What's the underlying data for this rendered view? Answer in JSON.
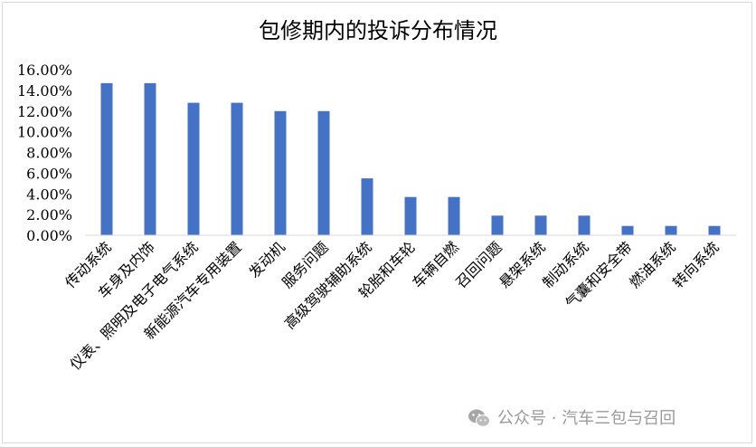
{
  "chart_data": {
    "type": "bar",
    "title": "包修期内的投诉分布情况",
    "categories": [
      "传动系统",
      "车身及内饰",
      "仪表、照明及电子电气系统",
      "新能源汽车专用装置",
      "发动机",
      "服务问题",
      "高级驾驶辅助系统",
      "轮胎和车轮",
      "车辆自燃",
      "召回问题",
      "悬架系统",
      "制动系统",
      "气囊和安全带",
      "燃油系统",
      "转向系统"
    ],
    "values": [
      14.7,
      14.7,
      12.8,
      12.8,
      12.0,
      12.0,
      5.5,
      3.7,
      3.7,
      1.9,
      1.9,
      1.9,
      0.9,
      0.9,
      0.9
    ],
    "ylim": [
      0,
      16
    ],
    "ytick_labels": [
      "0.00%",
      "2.00%",
      "4.00%",
      "6.00%",
      "8.00%",
      "10.00%",
      "12.00%",
      "14.00%",
      "16.00%"
    ],
    "bar_color": "#4472c4",
    "grid": false,
    "legend": "none"
  },
  "watermark": {
    "icon": "wechat-icon",
    "text": "公众号 · 汽车三包与召回"
  }
}
